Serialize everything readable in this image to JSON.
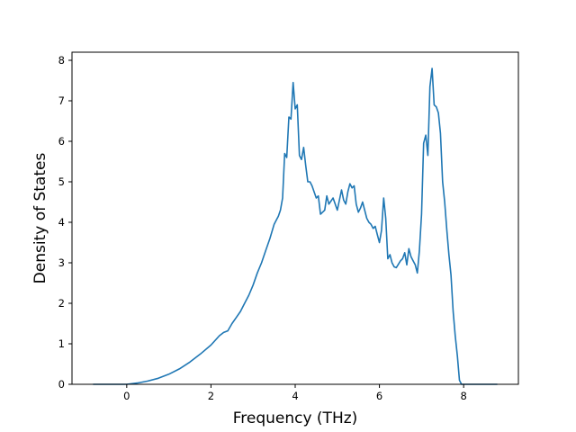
{
  "chart_data": {
    "type": "line",
    "title": "",
    "xlabel": "Frequency (THz)",
    "ylabel": "Density of States",
    "xlim": [
      -1.3,
      9.3
    ],
    "ylim": [
      0,
      8.2
    ],
    "xticks": [
      0,
      2,
      4,
      6,
      8
    ],
    "yticks": [
      0,
      1,
      2,
      3,
      4,
      5,
      6,
      7,
      8
    ],
    "grid": false,
    "legend": "none",
    "series": [
      {
        "color": "#1f77b4",
        "x": [
          -0.8,
          -0.4,
          0,
          0.25,
          0.5,
          0.75,
          1.0,
          1.25,
          1.5,
          1.75,
          2.0,
          2.2,
          2.3,
          2.4,
          2.5,
          2.6,
          2.7,
          2.8,
          2.9,
          3.0,
          3.1,
          3.2,
          3.3,
          3.4,
          3.5,
          3.55,
          3.6,
          3.65,
          3.7,
          3.75,
          3.8,
          3.85,
          3.9,
          3.95,
          4.0,
          4.05,
          4.1,
          4.15,
          4.2,
          4.25,
          4.3,
          4.35,
          4.4,
          4.5,
          4.55,
          4.6,
          4.65,
          4.7,
          4.75,
          4.8,
          4.9,
          5.0,
          5.1,
          5.15,
          5.2,
          5.25,
          5.3,
          5.35,
          5.4,
          5.45,
          5.5,
          5.55,
          5.6,
          5.7,
          5.75,
          5.8,
          5.85,
          5.9,
          5.95,
          6.0,
          6.05,
          6.1,
          6.15,
          6.2,
          6.25,
          6.3,
          6.35,
          6.4,
          6.5,
          6.55,
          6.6,
          6.65,
          6.7,
          6.75,
          6.8,
          6.85,
          6.9,
          6.95,
          7.0,
          7.05,
          7.1,
          7.15,
          7.2,
          7.25,
          7.3,
          7.35,
          7.4,
          7.45,
          7.5,
          7.55,
          7.6,
          7.65,
          7.7,
          7.75,
          7.8,
          7.85,
          7.9,
          7.95,
          8.0,
          8.3,
          8.8
        ],
        "y": [
          0,
          0,
          0,
          0.03,
          0.08,
          0.15,
          0.25,
          0.38,
          0.55,
          0.75,
          0.97,
          1.2,
          1.28,
          1.32,
          1.5,
          1.65,
          1.8,
          2.0,
          2.2,
          2.45,
          2.75,
          3.0,
          3.3,
          3.6,
          3.95,
          4.05,
          4.15,
          4.3,
          4.6,
          5.7,
          5.6,
          6.6,
          6.55,
          7.45,
          6.8,
          6.9,
          5.65,
          5.55,
          5.85,
          5.4,
          5.0,
          5.0,
          4.9,
          4.6,
          4.65,
          4.2,
          4.25,
          4.3,
          4.65,
          4.45,
          4.6,
          4.3,
          4.8,
          4.55,
          4.45,
          4.75,
          4.95,
          4.85,
          4.9,
          4.45,
          4.25,
          4.35,
          4.5,
          4.1,
          4.0,
          3.95,
          3.85,
          3.9,
          3.7,
          3.5,
          3.8,
          4.6,
          4.1,
          3.1,
          3.2,
          3.0,
          2.9,
          2.88,
          3.05,
          3.1,
          3.25,
          2.95,
          3.35,
          3.15,
          3.05,
          2.95,
          2.75,
          3.3,
          4.2,
          5.95,
          6.15,
          5.65,
          7.35,
          7.8,
          6.9,
          6.85,
          6.7,
          6.2,
          5.0,
          4.5,
          3.8,
          3.2,
          2.7,
          1.8,
          1.2,
          0.7,
          0.1,
          0,
          0,
          0,
          0
        ]
      }
    ]
  }
}
